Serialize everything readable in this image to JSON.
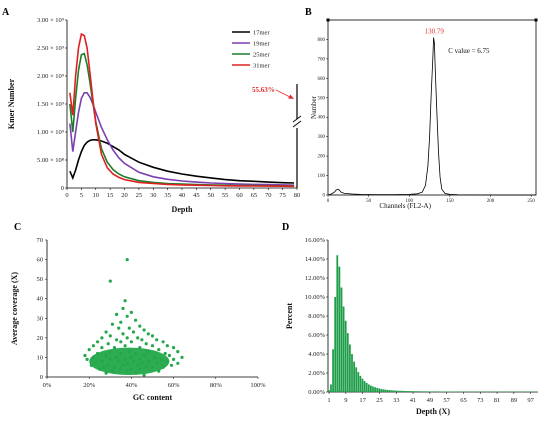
{
  "panels": {
    "a_letter": "A",
    "b_letter": "B",
    "c_letter": "C",
    "d_letter": "D"
  },
  "colors": {
    "black": "#000000",
    "purple": "#7b3fb0",
    "green": "#1e7d2c",
    "red": "#e02020",
    "scatter": "#22a84a",
    "bar": "#1f9e4a",
    "annotation_red": "#e03030"
  },
  "chart_data": [
    {
      "id": "A",
      "type": "line",
      "xlabel": "Depth",
      "ylabel": "Kmer Number",
      "xlim": [
        0,
        80
      ],
      "ylim": [
        0,
        3000000000
      ],
      "x_ticks": [
        "0",
        "5",
        "10",
        "15",
        "20",
        "25",
        "30",
        "35",
        "40",
        "45",
        "50",
        "55",
        "60",
        "65",
        "70",
        "75",
        "80"
      ],
      "y_ticks": [
        "0",
        "5.00 × 10⁸",
        "1.00 × 10⁹",
        "1.50 × 10⁹",
        "2.00 × 10⁹",
        "2.50 × 10⁹",
        "3.00 × 10⁹"
      ],
      "annotation": "55.63%",
      "series": [
        {
          "name": "17mer",
          "color": "#000000",
          "x": [
            1,
            2,
            3,
            4,
            5,
            6,
            7,
            8,
            9,
            10,
            12,
            14,
            16,
            18,
            20,
            25,
            30,
            35,
            40,
            45,
            50,
            55,
            60,
            65,
            70,
            75,
            79
          ],
          "y": [
            300000000.0,
            180000000.0,
            320000000.0,
            500000000.0,
            650000000.0,
            760000000.0,
            820000000.0,
            850000000.0,
            860000000.0,
            860000000.0,
            840000000.0,
            800000000.0,
            740000000.0,
            680000000.0,
            600000000.0,
            460000000.0,
            370000000.0,
            300000000.0,
            250000000.0,
            210000000.0,
            180000000.0,
            150000000.0,
            130000000.0,
            120000000.0,
            105000000.0,
            95000000.0,
            90000000.0
          ]
        },
        {
          "name": "19mer",
          "color": "#7b3fb0",
          "x": [
            1,
            2,
            3,
            4,
            5,
            6,
            7,
            8,
            9,
            10,
            12,
            14,
            16,
            18,
            20,
            25,
            30,
            35,
            40,
            45,
            50,
            55,
            60,
            65,
            70,
            75,
            79
          ],
          "y": [
            1150000000.0,
            650000000.0,
            1000000000.0,
            1350000000.0,
            1600000000.0,
            1700000000.0,
            1700000000.0,
            1620000000.0,
            1500000000.0,
            1350000000.0,
            1080000000.0,
            860000000.0,
            680000000.0,
            540000000.0,
            440000000.0,
            280000000.0,
            200000000.0,
            155000000.0,
            125000000.0,
            105000000.0,
            90000000.0,
            80000000.0,
            70000000.0,
            65000000.0,
            60000000.0,
            55000000.0,
            50000000.0
          ]
        },
        {
          "name": "25mer",
          "color": "#1e7d2c",
          "x": [
            1,
            2,
            3,
            4,
            5,
            6,
            7,
            8,
            9,
            10,
            12,
            14,
            16,
            18,
            20,
            25,
            30,
            35,
            40,
            45,
            50,
            55,
            60,
            65,
            70,
            75,
            79
          ],
          "y": [
            1500000000.0,
            1000000000.0,
            1600000000.0,
            2100000000.0,
            2380000000.0,
            2400000000.0,
            2200000000.0,
            1880000000.0,
            1520000000.0,
            1180000000.0,
            700000000.0,
            460000000.0,
            330000000.0,
            250000000.0,
            200000000.0,
            130000000.0,
            100000000.0,
            80000000.0,
            70000000.0,
            60000000.0,
            55000000.0,
            50000000.0,
            45000000.0,
            42000000.0,
            40000000.0,
            38000000.0,
            35000000.0
          ]
        },
        {
          "name": "31mer",
          "color": "#e02020",
          "x": [
            1,
            2,
            3,
            4,
            5,
            6,
            7,
            8,
            9,
            10,
            12,
            14,
            16,
            18,
            20,
            25,
            30,
            35,
            40,
            45,
            50,
            55,
            60,
            65,
            70,
            75,
            79
          ],
          "y": [
            1700000000.0,
            1300000000.0,
            2000000000.0,
            2500000000.0,
            2750000000.0,
            2720000000.0,
            2500000000.0,
            2050000000.0,
            1580000000.0,
            1150000000.0,
            600000000.0,
            360000000.0,
            250000000.0,
            190000000.0,
            150000000.0,
            100000000.0,
            80000000.0,
            65000000.0,
            55000000.0,
            50000000.0,
            45000000.0,
            40000000.0,
            38000000.0,
            36000000.0,
            34000000.0,
            32000000.0,
            30000000.0
          ]
        }
      ]
    },
    {
      "id": "B",
      "type": "line",
      "xlabel": "Channels (FL2-A)",
      "ylabel": "Number",
      "xlim": [
        0,
        256
      ],
      "ylim": [
        0,
        900
      ],
      "x_ticks": [
        "0",
        "50",
        "100",
        "150",
        "200",
        "250"
      ],
      "y_ticks": [
        "0",
        "100",
        "200",
        "300",
        "400",
        "500",
        "600",
        "700",
        "800"
      ],
      "peak_label": "130.79",
      "c_value_label": "C value = 6.75",
      "series": [
        {
          "name": "",
          "color": "#000000",
          "x": [
            0,
            4,
            8,
            10,
            12,
            14,
            16,
            20,
            30,
            40,
            60,
            80,
            100,
            110,
            116,
            120,
            123,
            125,
            127,
            129,
            130,
            131,
            132,
            134,
            136,
            138,
            140,
            144,
            150,
            160,
            200,
            256
          ],
          "y": [
            0,
            5,
            15,
            25,
            30,
            25,
            15,
            8,
            5,
            3,
            2,
            2,
            3,
            6,
            15,
            50,
            150,
            300,
            520,
            700,
            810,
            780,
            640,
            420,
            220,
            90,
            30,
            8,
            3,
            1,
            0,
            0
          ]
        }
      ]
    },
    {
      "id": "C",
      "type": "scatter",
      "xlabel": "GC content",
      "ylabel": "Average coverage (X)",
      "xlim": [
        0,
        100
      ],
      "ylim": [
        0,
        70
      ],
      "x_ticks": [
        "0%",
        "20%",
        "40%",
        "60%",
        "80%",
        "100%"
      ],
      "y_ticks": [
        "0",
        "10",
        "20",
        "30",
        "40",
        "50",
        "60",
        "70"
      ],
      "points": [
        [
          38,
          60
        ],
        [
          30,
          49
        ],
        [
          37,
          39
        ],
        [
          36,
          35
        ],
        [
          40,
          33
        ],
        [
          33,
          32
        ],
        [
          38,
          31
        ],
        [
          42,
          29
        ],
        [
          35,
          28
        ],
        [
          31,
          27
        ],
        [
          44,
          26
        ],
        [
          39,
          25
        ],
        [
          34,
          25
        ],
        [
          46,
          24
        ],
        [
          28,
          23
        ],
        [
          41,
          23
        ],
        [
          48,
          22
        ],
        [
          36,
          22
        ],
        [
          30,
          21
        ],
        [
          50,
          21
        ],
        [
          43,
          20
        ],
        [
          26,
          20
        ],
        [
          38,
          20
        ],
        [
          52,
          19
        ],
        [
          33,
          19
        ],
        [
          45,
          19
        ],
        [
          24,
          18
        ],
        [
          55,
          18
        ],
        [
          40,
          18
        ],
        [
          35,
          18
        ],
        [
          29,
          17
        ],
        [
          47,
          17
        ],
        [
          57,
          16
        ],
        [
          22,
          16
        ],
        [
          50,
          16
        ],
        [
          37,
          16
        ],
        [
          60,
          15
        ],
        [
          32,
          15
        ],
        [
          44,
          15
        ],
        [
          26,
          15
        ],
        [
          53,
          14
        ],
        [
          20,
          14
        ],
        [
          62,
          13
        ],
        [
          48,
          13
        ],
        [
          39,
          13
        ],
        [
          30,
          13
        ],
        [
          56,
          12
        ],
        [
          24,
          12
        ],
        [
          42,
          12
        ],
        [
          35,
          12
        ],
        [
          58,
          11
        ],
        [
          18,
          11
        ],
        [
          46,
          11
        ],
        [
          28,
          11
        ],
        [
          64,
          10
        ],
        [
          51,
          10
        ],
        [
          33,
          10
        ],
        [
          40,
          10
        ],
        [
          22,
          10
        ],
        [
          60,
          9
        ],
        [
          44,
          9
        ],
        [
          30,
          9
        ],
        [
          37,
          9
        ],
        [
          54,
          9
        ],
        [
          19,
          9
        ],
        [
          48,
          8
        ],
        [
          26,
          8
        ],
        [
          41,
          8
        ],
        [
          57,
          8
        ],
        [
          34,
          8
        ],
        [
          62,
          7
        ],
        [
          23,
          7
        ],
        [
          45,
          7
        ],
        [
          38,
          7
        ],
        [
          52,
          7
        ],
        [
          29,
          6
        ],
        [
          59,
          6
        ],
        [
          36,
          6
        ],
        [
          43,
          6
        ],
        [
          21,
          6
        ],
        [
          50,
          5
        ],
        [
          32,
          5
        ],
        [
          47,
          5
        ],
        [
          27,
          5
        ],
        [
          55,
          5
        ],
        [
          40,
          4
        ],
        [
          35,
          4
        ],
        [
          25,
          4
        ],
        [
          44,
          4
        ],
        [
          31,
          3
        ],
        [
          53,
          3
        ],
        [
          38,
          3
        ],
        [
          28,
          2
        ],
        [
          42,
          2
        ],
        [
          46,
          1
        ]
      ]
    },
    {
      "id": "D",
      "type": "bar",
      "xlabel": "Depth (X)",
      "ylabel": "Percent",
      "ylim": [
        0,
        16
      ],
      "x_ticks": [
        "1",
        "9",
        "17",
        "25",
        "33",
        "41",
        "49",
        "57",
        "65",
        "73",
        "81",
        "89",
        "97"
      ],
      "y_ticks": [
        "0.00%",
        "2.00%",
        "4.00%",
        "6.00%",
        "8.00%",
        "10.00%",
        "12.00%",
        "14.00%",
        "16.00%"
      ],
      "categories": [
        1,
        2,
        3,
        4,
        5,
        6,
        7,
        8,
        9,
        10,
        11,
        12,
        13,
        14,
        15,
        16,
        17,
        18,
        19,
        20,
        21,
        22,
        23,
        24,
        25,
        26,
        27,
        28,
        29,
        30,
        31,
        32,
        33,
        34,
        35,
        36,
        37,
        38,
        39,
        40,
        41,
        42,
        43,
        44,
        45,
        46,
        47,
        48,
        49,
        50,
        51,
        52,
        53,
        54,
        55,
        56,
        57,
        58,
        59,
        60,
        61,
        62,
        63,
        64,
        65,
        66,
        67,
        68,
        69,
        70,
        71,
        72,
        73,
        74,
        75,
        76,
        77,
        78,
        79,
        80,
        81,
        82,
        83,
        84,
        85,
        86,
        87,
        88,
        89,
        90,
        91,
        92,
        93,
        94,
        95,
        96,
        97,
        98,
        99,
        100
      ],
      "values": [
        0.2,
        0.8,
        4.5,
        10.0,
        14.4,
        13.2,
        11.0,
        9.0,
        7.5,
        6.2,
        5.0,
        4.0,
        3.2,
        2.6,
        2.1,
        1.7,
        1.4,
        1.15,
        0.95,
        0.8,
        0.68,
        0.58,
        0.5,
        0.43,
        0.37,
        0.32,
        0.28,
        0.25,
        0.22,
        0.2,
        0.18,
        0.16,
        0.15,
        0.14,
        0.13,
        0.12,
        0.11,
        0.1,
        0.1,
        0.09,
        0.09,
        0.08,
        0.08,
        0.08,
        0.07,
        0.07,
        0.07,
        0.07,
        0.06,
        0.06,
        0.06,
        0.06,
        0.06,
        0.05,
        0.05,
        0.05,
        0.05,
        0.05,
        0.05,
        0.05,
        0.05,
        0.04,
        0.04,
        0.04,
        0.04,
        0.04,
        0.04,
        0.04,
        0.04,
        0.04,
        0.04,
        0.04,
        0.04,
        0.04,
        0.04,
        0.04,
        0.04,
        0.04,
        0.04,
        0.04,
        0.04,
        0.04,
        0.04,
        0.04,
        0.04,
        0.04,
        0.04,
        0.04,
        0.04,
        0.04,
        0.04,
        0.04,
        0.04,
        0.04,
        0.04,
        0.04,
        0.04,
        0.04,
        0.04,
        0.04
      ]
    }
  ]
}
